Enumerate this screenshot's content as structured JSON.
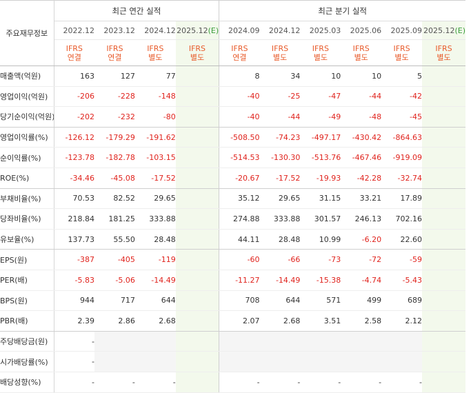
{
  "header": {
    "corner_label": "주요재무정보",
    "annual_group": "최근 연간 실적",
    "quarter_group": "최근 분기 실적",
    "annual_periods": [
      {
        "label": "2022.12",
        "est": "",
        "std1": "IFRS",
        "std2": "연결"
      },
      {
        "label": "2023.12",
        "est": "",
        "std1": "IFRS",
        "std2": "연결"
      },
      {
        "label": "2024.12",
        "est": "",
        "std1": "IFRS",
        "std2": "별도"
      },
      {
        "label": "2025.12",
        "est": "(E)",
        "std1": "IFRS",
        "std2": "별도"
      }
    ],
    "quarter_periods": [
      {
        "label": "2024.09",
        "est": "",
        "std1": "IFRS",
        "std2": "연결"
      },
      {
        "label": "2024.12",
        "est": "",
        "std1": "IFRS",
        "std2": "별도"
      },
      {
        "label": "2025.03",
        "est": "",
        "std1": "IFRS",
        "std2": "별도"
      },
      {
        "label": "2025.06",
        "est": "",
        "std1": "IFRS",
        "std2": "별도"
      },
      {
        "label": "2025.09",
        "est": "",
        "std1": "IFRS",
        "std2": "별도"
      },
      {
        "label": "2025.12",
        "est": "(E)",
        "std1": "IFRS",
        "std2": "별도"
      }
    ]
  },
  "rows": [
    {
      "label": "매출액(억원)",
      "values": [
        "163",
        "127",
        "77",
        "",
        "8",
        "34",
        "10",
        "10",
        "5",
        ""
      ],
      "section_end": false
    },
    {
      "label": "영업이익(억원)",
      "values": [
        "-206",
        "-228",
        "-148",
        "",
        "-40",
        "-25",
        "-47",
        "-44",
        "-42",
        ""
      ],
      "section_end": false
    },
    {
      "label": "당기순이익(억원)",
      "values": [
        "-202",
        "-232",
        "-80",
        "",
        "-40",
        "-44",
        "-49",
        "-48",
        "-45",
        ""
      ],
      "section_end": true
    },
    {
      "label": "영업이익률(%)",
      "values": [
        "-126.12",
        "-179.29",
        "-191.62",
        "",
        "-508.50",
        "-74.23",
        "-497.17",
        "-430.42",
        "-864.63",
        ""
      ],
      "section_end": false
    },
    {
      "label": "순이익률(%)",
      "values": [
        "-123.78",
        "-182.78",
        "-103.15",
        "",
        "-514.53",
        "-130.30",
        "-513.76",
        "-467.46",
        "-919.09",
        ""
      ],
      "section_end": false
    },
    {
      "label": "ROE(%)",
      "values": [
        "-34.46",
        "-45.08",
        "-17.52",
        "",
        "-20.67",
        "-17.52",
        "-19.93",
        "-42.28",
        "-32.74",
        ""
      ],
      "section_end": true
    },
    {
      "label": "부채비율(%)",
      "values": [
        "70.53",
        "82.52",
        "29.65",
        "",
        "35.12",
        "29.65",
        "31.15",
        "33.21",
        "17.89",
        ""
      ],
      "section_end": false
    },
    {
      "label": "당좌비율(%)",
      "values": [
        "218.84",
        "181.25",
        "333.88",
        "",
        "274.88",
        "333.88",
        "301.57",
        "246.13",
        "702.16",
        ""
      ],
      "section_end": false
    },
    {
      "label": "유보율(%)",
      "values": [
        "137.73",
        "55.50",
        "28.48",
        "",
        "44.11",
        "28.48",
        "10.99",
        "-6.20",
        "22.60",
        ""
      ],
      "section_end": true
    },
    {
      "label": "EPS(원)",
      "values": [
        "-387",
        "-405",
        "-119",
        "",
        "-60",
        "-66",
        "-73",
        "-72",
        "-59",
        ""
      ],
      "section_end": false
    },
    {
      "label": "PER(배)",
      "values": [
        "-5.83",
        "-5.06",
        "-14.49",
        "",
        "-11.27",
        "-14.49",
        "-15.38",
        "-4.74",
        "-5.43",
        ""
      ],
      "section_end": false
    },
    {
      "label": "BPS(원)",
      "values": [
        "944",
        "717",
        "644",
        "",
        "708",
        "644",
        "571",
        "499",
        "689",
        ""
      ],
      "section_end": false
    },
    {
      "label": "PBR(배)",
      "values": [
        "2.39",
        "2.86",
        "2.68",
        "",
        "2.07",
        "2.68",
        "3.51",
        "2.58",
        "2.12",
        ""
      ],
      "section_end": true
    },
    {
      "label": "주당배당금(원)",
      "values": [
        "-",
        "",
        "",
        "",
        "",
        "",
        "",
        "",
        "",
        ""
      ],
      "blank_cells": [
        1,
        2,
        3,
        4,
        5,
        6,
        7,
        8,
        9
      ],
      "section_end": false
    },
    {
      "label": "시가배당률(%)",
      "values": [
        "-",
        "",
        "",
        "",
        "",
        "",
        "",
        "",
        "",
        ""
      ],
      "blank_cells": [
        1,
        2,
        3,
        4,
        5,
        6,
        7,
        8,
        9
      ],
      "section_end": false
    },
    {
      "label": "배당성향(%)",
      "values": [
        "-",
        "-",
        "-",
        "",
        "-",
        "-",
        "-",
        "-",
        "-",
        ""
      ],
      "section_end": false
    }
  ],
  "colors": {
    "negative": "#e0231d",
    "standard_text": "#e85a2a",
    "estimate_bg": "#f3f9ec",
    "estimate_mark": "#3a9c3a",
    "blank_bg": "#f5f5f5"
  }
}
